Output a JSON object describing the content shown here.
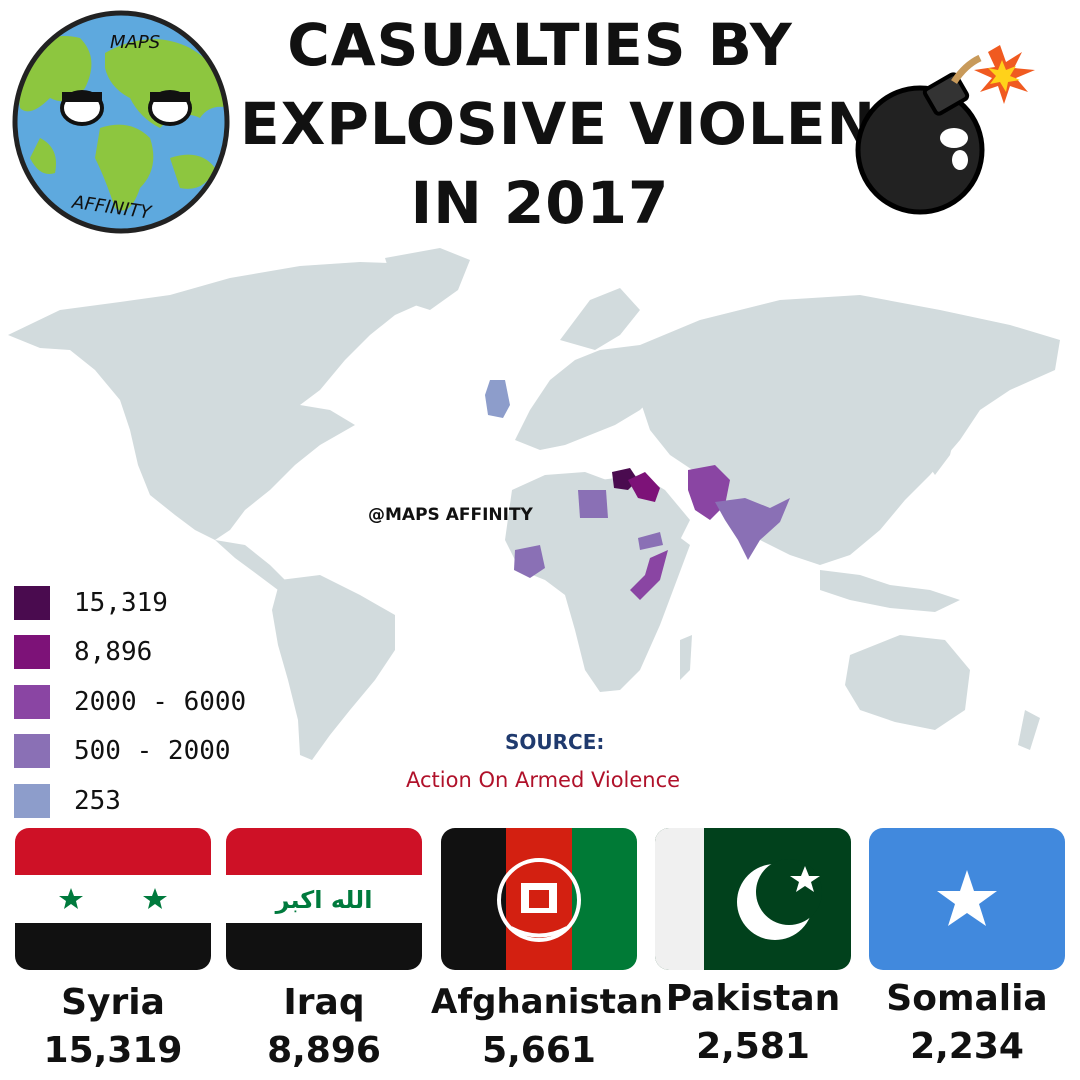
{
  "title_lines": [
    "CASUALTIES BY",
    "EXPLOSIVE VIOLENCE",
    "IN 2017"
  ],
  "logo": {
    "top_text": "MAPS",
    "bottom_text": "AFFINITY"
  },
  "watermark": "@MAPS AFFINITY",
  "legend": [
    {
      "label": "15,319",
      "color": "#4a0b4f"
    },
    {
      "label": "8,896",
      "color": "#7d1278"
    },
    {
      "label": "2000 - 6000",
      "color": "#8a45a3"
    },
    {
      "label": "500 - 2000",
      "color": "#8a70b5"
    },
    {
      "label": "253",
      "color": "#8d9dcb"
    }
  ],
  "source": {
    "heading": "SOURCE:",
    "name": "Action On Armed Violence"
  },
  "countries": [
    {
      "name": "Syria",
      "value": "15,319"
    },
    {
      "name": "Iraq",
      "value": "8,896"
    },
    {
      "name": "Afghanistan",
      "value": "5,661"
    },
    {
      "name": "Pakistan",
      "value": "2,581"
    },
    {
      "name": "Somalia",
      "value": "2,234"
    }
  ],
  "map_colors": {
    "land": "#d2dbdd",
    "ocean": "#ffffff"
  }
}
